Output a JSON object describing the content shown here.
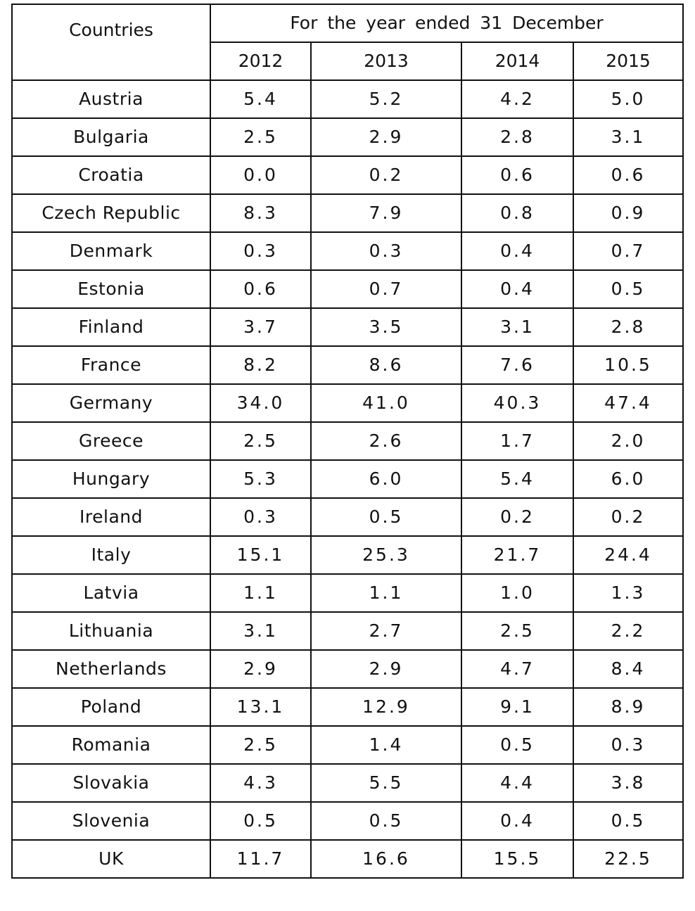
{
  "table": {
    "country_header": "Countries",
    "period_header": "For the year ended 31 December",
    "years": [
      "2012",
      "2013",
      "2014",
      "2015"
    ],
    "rows": [
      {
        "country": "Austria",
        "values": [
          "5.4",
          "5.2",
          "4.2",
          "5.0"
        ]
      },
      {
        "country": "Bulgaria",
        "values": [
          "2.5",
          "2.9",
          "2.8",
          "3.1"
        ]
      },
      {
        "country": "Croatia",
        "values": [
          "0.0",
          "0.2",
          "0.6",
          "0.6"
        ]
      },
      {
        "country": "Czech Republic",
        "values": [
          "8.3",
          "7.9",
          "0.8",
          "0.9"
        ]
      },
      {
        "country": "Denmark",
        "values": [
          "0.3",
          "0.3",
          "0.4",
          "0.7"
        ]
      },
      {
        "country": "Estonia",
        "values": [
          "0.6",
          "0.7",
          "0.4",
          "0.5"
        ]
      },
      {
        "country": "Finland",
        "values": [
          "3.7",
          "3.5",
          "3.1",
          "2.8"
        ]
      },
      {
        "country": "France",
        "values": [
          "8.2",
          "8.6",
          "7.6",
          "10.5"
        ]
      },
      {
        "country": "Germany",
        "values": [
          "34.0",
          "41.0",
          "40.3",
          "47.4"
        ]
      },
      {
        "country": "Greece",
        "values": [
          "2.5",
          "2.6",
          "1.7",
          "2.0"
        ]
      },
      {
        "country": "Hungary",
        "values": [
          "5.3",
          "6.0",
          "5.4",
          "6.0"
        ]
      },
      {
        "country": "Ireland",
        "values": [
          "0.3",
          "0.5",
          "0.2",
          "0.2"
        ]
      },
      {
        "country": "Italy",
        "values": [
          "15.1",
          "25.3",
          "21.7",
          "24.4"
        ]
      },
      {
        "country": "Latvia",
        "values": [
          "1.1",
          "1.1",
          "1.0",
          "1.3"
        ]
      },
      {
        "country": "Lithuania",
        "values": [
          "3.1",
          "2.7",
          "2.5",
          "2.2"
        ]
      },
      {
        "country": "Netherlands",
        "values": [
          "2.9",
          "2.9",
          "4.7",
          "8.4"
        ]
      },
      {
        "country": "Poland",
        "values": [
          "13.1",
          "12.9",
          "9.1",
          "8.9"
        ]
      },
      {
        "country": "Romania",
        "values": [
          "2.5",
          "1.4",
          "0.5",
          "0.3"
        ]
      },
      {
        "country": "Slovakia",
        "values": [
          "4.3",
          "5.5",
          "4.4",
          "3.8"
        ]
      },
      {
        "country": "Slovenia",
        "values": [
          "0.5",
          "0.5",
          "0.4",
          "0.5"
        ]
      },
      {
        "country": "UK",
        "values": [
          "11.7",
          "16.6",
          "15.5",
          "22.5"
        ]
      }
    ]
  }
}
